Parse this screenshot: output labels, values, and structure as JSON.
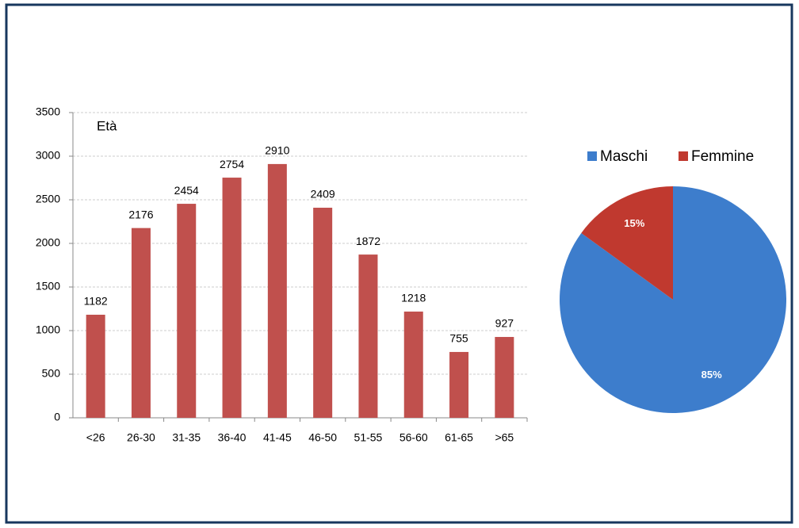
{
  "chart_data": [
    {
      "type": "bar",
      "title": "Età",
      "categories": [
        "<26",
        "26-30",
        "31-35",
        "36-40",
        "41-45",
        "46-50",
        "51-55",
        "56-60",
        "61-65",
        ">65"
      ],
      "values": [
        1182,
        2176,
        2454,
        2754,
        2910,
        2409,
        1872,
        1218,
        755,
        927
      ],
      "color": "#c0504d",
      "ylim": [
        0,
        3500
      ],
      "yticks": [
        0,
        500,
        1000,
        1500,
        2000,
        2500,
        3000,
        3500
      ],
      "grid": true
    },
    {
      "type": "pie",
      "categories": [
        "Maschi",
        "Femmine"
      ],
      "values": [
        85,
        15
      ],
      "value_labels": [
        "85%",
        "15%"
      ],
      "colors": [
        "#3d7dcc",
        "#c0392f"
      ],
      "legend": "top"
    }
  ]
}
